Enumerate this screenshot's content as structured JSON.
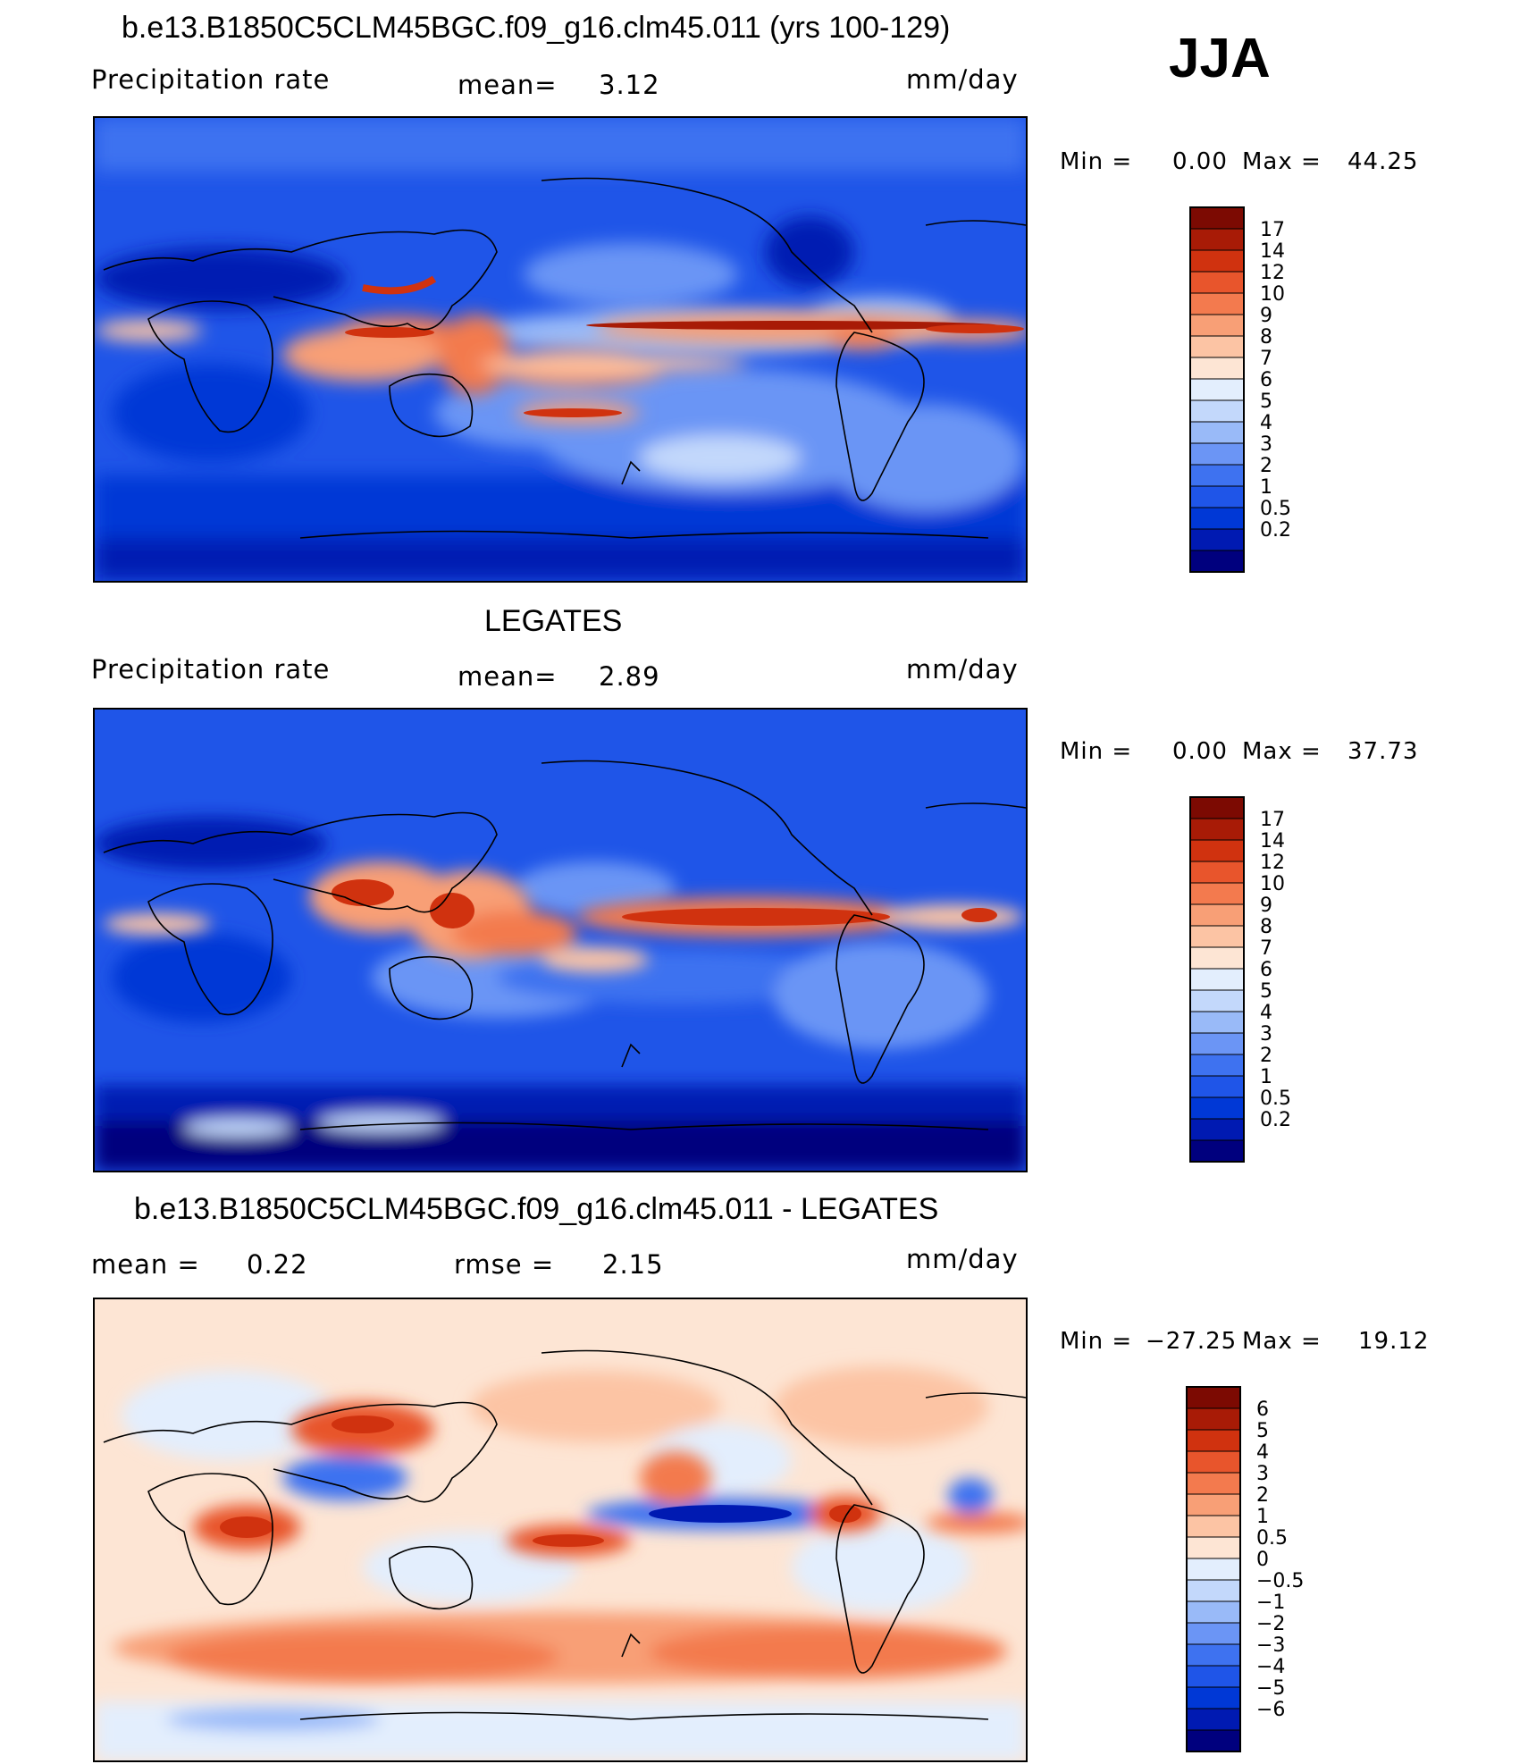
{
  "season": "JJA",
  "colors": {
    "abs_scale": [
      "#00007e",
      "#001ab2",
      "#0038d6",
      "#1f55e8",
      "#3e72f0",
      "#6b95f5",
      "#99baf8",
      "#c3d8fb",
      "#e3eefd",
      "#fde5d4",
      "#fcc4a4",
      "#f89f76",
      "#f37a4e",
      "#e8552c",
      "#d0320f",
      "#a81b06",
      "#7c0a02"
    ],
    "diff_scale": [
      "#00007e",
      "#001ab2",
      "#0038d6",
      "#1f55e8",
      "#3e72f0",
      "#6b95f5",
      "#99baf8",
      "#c3d8fb",
      "#e3eefd",
      "#fde5d4",
      "#fcc4a4",
      "#f89f76",
      "#f37a4e",
      "#e8552c",
      "#d0320f",
      "#a81b06",
      "#7c0a02"
    ]
  },
  "chart_data": [
    {
      "type": "heatmap",
      "title": "b.e13.B1850C5CLM45BGC.f09_g16.clm45.011 (yrs 100-129)",
      "variable": "Precipitation  rate",
      "mean_label": "mean=",
      "mean": "3.12",
      "units": "mm/day",
      "min_label": "Min  =",
      "min": "0.00",
      "max_label": "Max  =",
      "max": "44.25",
      "colorbar_ticks": [
        "0.2",
        "0.5",
        "1",
        "2",
        "3",
        "4",
        "5",
        "6",
        "7",
        "8",
        "9",
        "10",
        "12",
        "14",
        "17"
      ]
    },
    {
      "type": "heatmap",
      "title": "LEGATES",
      "variable": "Precipitation  rate",
      "mean_label": "mean=",
      "mean": "2.89",
      "units": "mm/day",
      "min_label": "Min  =",
      "min": "0.00",
      "max_label": "Max  =",
      "max": "37.73",
      "colorbar_ticks": [
        "0.2",
        "0.5",
        "1",
        "2",
        "3",
        "4",
        "5",
        "6",
        "7",
        "8",
        "9",
        "10",
        "12",
        "14",
        "17"
      ]
    },
    {
      "type": "heatmap",
      "title": "b.e13.B1850C5CLM45BGC.f09_g16.clm45.011 - LEGATES",
      "mean_label": "mean  =",
      "mean": "0.22",
      "rmse_label": "rmse  =",
      "rmse": "2.15",
      "units": "mm/day",
      "min_label": "Min  =",
      "min": "−27.25",
      "max_label": "Max  =",
      "max": "19.12",
      "colorbar_ticks": [
        "−6",
        "−5",
        "−4",
        "−3",
        "−2",
        "−1",
        "−0.5",
        "0",
        "0.5",
        "1",
        "2",
        "3",
        "4",
        "5",
        "6"
      ]
    }
  ]
}
